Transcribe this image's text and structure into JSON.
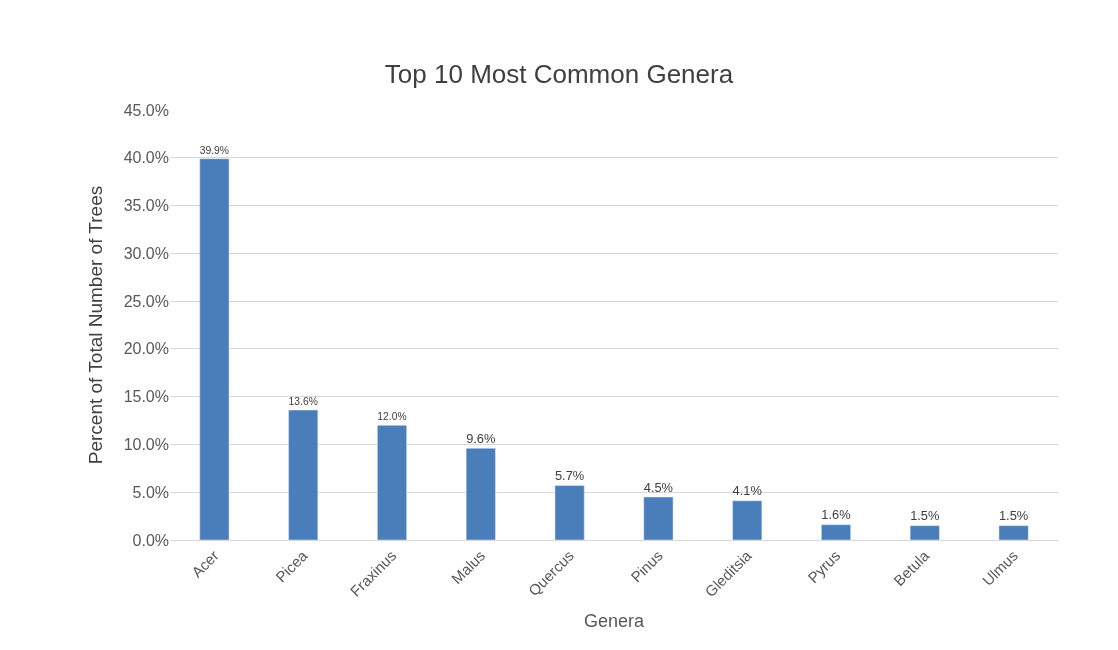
{
  "chart_data": {
    "type": "bar",
    "title": "Top 10 Most Common Genera",
    "xlabel": "Genera",
    "ylabel": "Percent of Total Number of Trees",
    "categories": [
      "Acer",
      "Picea",
      "Fraxinus",
      "Malus",
      "Quercus",
      "Pinus",
      "Gleditsia",
      "Pyrus",
      "Betula",
      "Ulmus"
    ],
    "values": [
      39.9,
      13.6,
      12.0,
      9.6,
      5.7,
      4.5,
      4.1,
      1.6,
      1.5,
      1.5
    ],
    "value_labels": [
      "39.9%",
      "13.6%",
      "12.0%",
      "9.6%",
      "5.7%",
      "4.5%",
      "4.1%",
      "1.6%",
      "1.5%",
      "1.5%"
    ],
    "color": "#4a7ebb",
    "ylim": [
      0,
      45
    ],
    "yticks": [
      {
        "value": 0,
        "label": "0.0%"
      },
      {
        "value": 5,
        "label": "5.0%"
      },
      {
        "value": 10,
        "label": "10.0%"
      },
      {
        "value": 15,
        "label": "15.0%"
      },
      {
        "value": 20,
        "label": "20.0%"
      },
      {
        "value": 25,
        "label": "25.0%"
      },
      {
        "value": 30,
        "label": "30.0%"
      },
      {
        "value": 35,
        "label": "35.0%"
      },
      {
        "value": 40,
        "label": "40.0%"
      },
      {
        "value": 45,
        "label": "45.0%"
      }
    ],
    "grid": "y",
    "legend": false
  }
}
